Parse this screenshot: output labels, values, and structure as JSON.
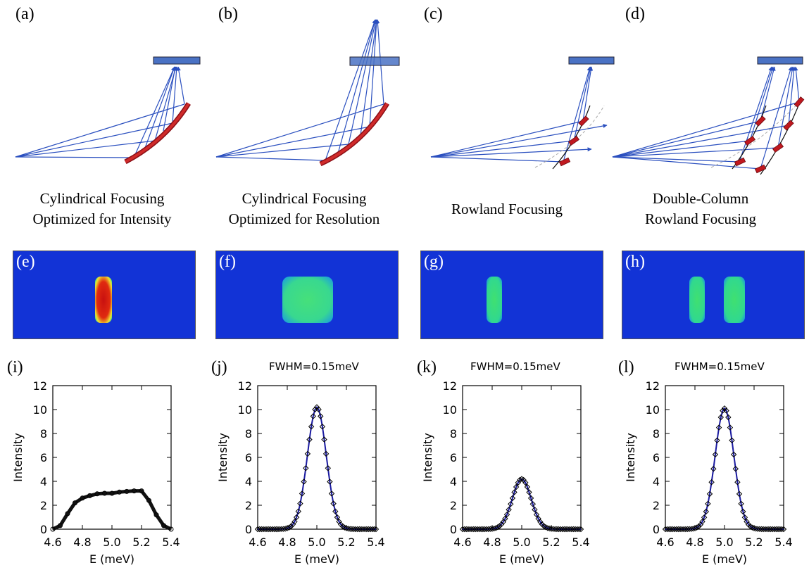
{
  "schemes": [
    {
      "label": "(a)",
      "caption": [
        "Cylindrical Focusing",
        "Optimized for Intensity"
      ]
    },
    {
      "label": "(b)",
      "caption": [
        "Cylindrical Focusing",
        "Optimized for Resolution"
      ]
    },
    {
      "label": "(c)",
      "caption": [
        "Rowland Focusing"
      ]
    },
    {
      "label": "(d)",
      "caption": [
        "Double-Column",
        "Rowland Focusing"
      ]
    }
  ],
  "detector_images": [
    {
      "label": "(e)"
    },
    {
      "label": "(f)"
    },
    {
      "label": "(g)"
    },
    {
      "label": "(h)"
    }
  ],
  "colors": {
    "detector_background": "#1233d6",
    "rays": "#2a4fbf",
    "analyzer": "#b0141e",
    "fit_line": "#1a1aa0"
  },
  "chart_data": [
    {
      "type": "scatter",
      "label": "(i)",
      "title": "",
      "xlabel": "E (meV)",
      "ylabel": "Intensity",
      "xlim": [
        4.6,
        5.4
      ],
      "ylim": [
        0,
        12
      ],
      "xticks": [
        "4.6",
        "4.8",
        "5.0",
        "5.2",
        "5.4"
      ],
      "yticks": [
        "0",
        "2",
        "4",
        "6",
        "8",
        "10",
        "12"
      ],
      "series": [
        {
          "x": [
            4.6,
            4.65,
            4.7,
            4.75,
            4.8,
            4.85,
            4.9,
            4.95,
            5.0,
            5.05,
            5.1,
            5.15,
            5.2,
            5.25,
            5.3,
            5.35,
            5.4
          ],
          "y": [
            0,
            0.3,
            1.3,
            2.2,
            2.6,
            2.8,
            2.95,
            3.0,
            3.0,
            3.1,
            3.15,
            3.2,
            3.2,
            2.4,
            1.2,
            0.3,
            0
          ]
        }
      ]
    },
    {
      "type": "scatter",
      "label": "(j)",
      "title": "FWHM=0.15meV",
      "xlabel": "E (meV)",
      "ylabel": "Intensity",
      "xlim": [
        4.6,
        5.4
      ],
      "ylim": [
        0,
        12
      ],
      "xticks": [
        "4.6",
        "4.8",
        "5.0",
        "5.2",
        "5.4"
      ],
      "yticks": [
        "0",
        "2",
        "4",
        "6",
        "8",
        "10",
        "12"
      ],
      "peak": {
        "center": 5.0,
        "amplitude": 10.2,
        "fwhm": 0.15
      }
    },
    {
      "type": "scatter",
      "label": "(k)",
      "title": "FWHM=0.15meV",
      "xlabel": "E (meV)",
      "ylabel": "Intensity",
      "xlim": [
        4.6,
        5.4
      ],
      "ylim": [
        0,
        12
      ],
      "xticks": [
        "4.6",
        "4.8",
        "5.0",
        "5.2",
        "5.4"
      ],
      "yticks": [
        "0",
        "2",
        "4",
        "6",
        "8",
        "10",
        "12"
      ],
      "peak": {
        "center": 5.0,
        "amplitude": 4.2,
        "fwhm": 0.15
      }
    },
    {
      "type": "scatter",
      "label": "(l)",
      "title": "FWHM=0.15meV",
      "xlabel": "E (meV)",
      "ylabel": "Intensity",
      "xlim": [
        4.6,
        5.4
      ],
      "ylim": [
        0,
        12
      ],
      "xticks": [
        "4.6",
        "4.8",
        "5.0",
        "5.2",
        "5.4"
      ],
      "yticks": [
        "0",
        "2",
        "4",
        "6",
        "8",
        "10",
        "12"
      ],
      "peak": {
        "center": 5.0,
        "amplitude": 10.1,
        "fwhm": 0.15
      }
    }
  ]
}
